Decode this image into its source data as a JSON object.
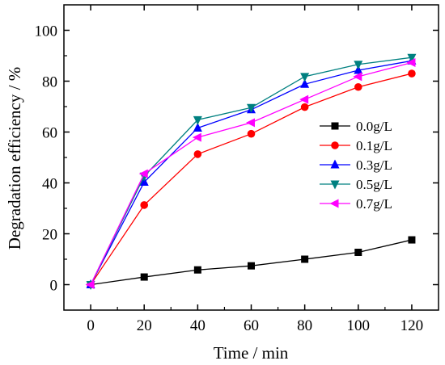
{
  "chart_data": {
    "type": "line",
    "title": "",
    "xlabel": "Time / min",
    "ylabel": "Degradation efficiency / %",
    "x": [
      0,
      20,
      40,
      60,
      80,
      100,
      120
    ],
    "xlim": [
      -10,
      130
    ],
    "ylim": [
      -10,
      110
    ],
    "xticks": [
      0,
      20,
      40,
      60,
      80,
      100,
      120
    ],
    "yticks": [
      0,
      20,
      40,
      60,
      80,
      100
    ],
    "grid": false,
    "legend_position": "center-right",
    "series": [
      {
        "name": "0.0g/L",
        "color": "#000000",
        "marker": "square",
        "values": [
          0,
          3.0,
          5.8,
          7.4,
          10.0,
          12.7,
          17.6
        ]
      },
      {
        "name": "0.1g/L",
        "color": "#ff0000",
        "marker": "circle",
        "values": [
          0,
          31.3,
          51.3,
          59.3,
          69.8,
          77.7,
          83.0
        ]
      },
      {
        "name": "0.3g/L",
        "color": "#0000ff",
        "marker": "triangle-up",
        "values": [
          0,
          40.3,
          61.6,
          68.8,
          78.8,
          84.3,
          88.0
        ]
      },
      {
        "name": "0.5g/L",
        "color": "#008080",
        "marker": "triangle-down",
        "values": [
          0,
          42.6,
          64.8,
          69.6,
          81.8,
          86.6,
          89.3
        ]
      },
      {
        "name": "0.7g/L",
        "color": "#ff00ff",
        "marker": "triangle-left",
        "values": [
          0,
          43.6,
          57.9,
          63.7,
          72.8,
          81.8,
          87.3
        ]
      }
    ]
  }
}
